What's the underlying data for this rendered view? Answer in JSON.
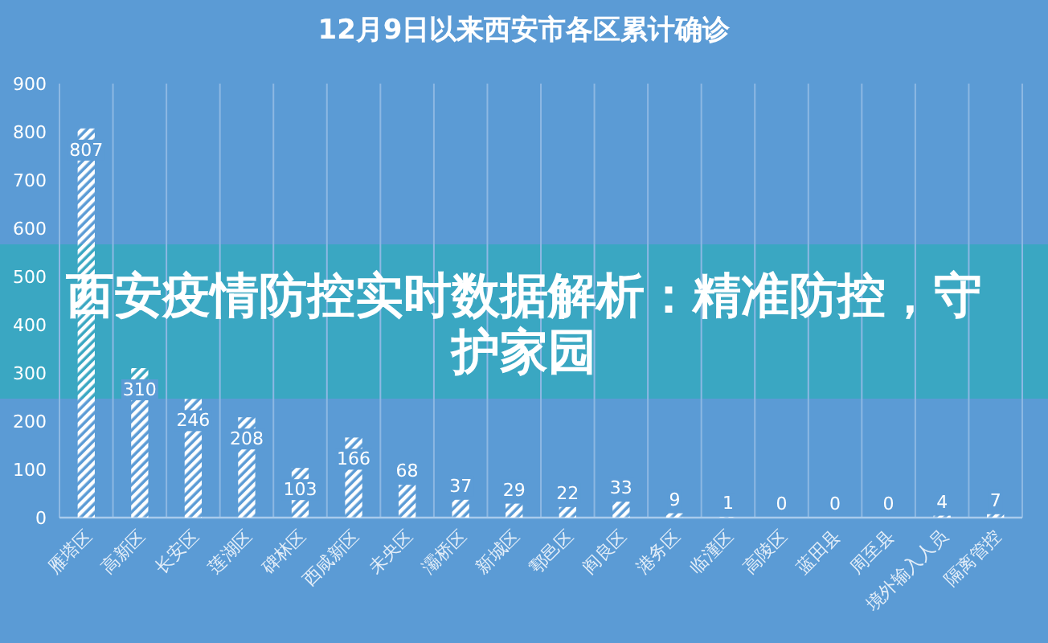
{
  "chart_data": {
    "type": "bar",
    "title": "12月9日以来西安市各区累计确诊",
    "annotations": [
      "西安疫情防控实时数据解析：精准防控，守护家园"
    ],
    "categories": [
      "雁塔区",
      "高新区",
      "长安区",
      "莲湖区",
      "碑林区",
      "西咸新区",
      "未央区",
      "灞桥区",
      "新城区",
      "鄠邑区",
      "阎良区",
      "港务区",
      "临潼区",
      "高陵区",
      "蓝田县",
      "周至县",
      "境外输入人员",
      "隔离管控"
    ],
    "values": [
      807,
      310,
      246,
      208,
      103,
      166,
      68,
      37,
      29,
      22,
      33,
      9,
      1,
      0,
      0,
      0,
      4,
      7
    ],
    "color": "#ffffff",
    "ylim": [
      0,
      900
    ],
    "yticks": [
      0,
      100,
      200,
      300,
      400,
      500,
      600,
      700,
      800,
      900
    ],
    "grid": "x",
    "data_labels": true
  }
}
